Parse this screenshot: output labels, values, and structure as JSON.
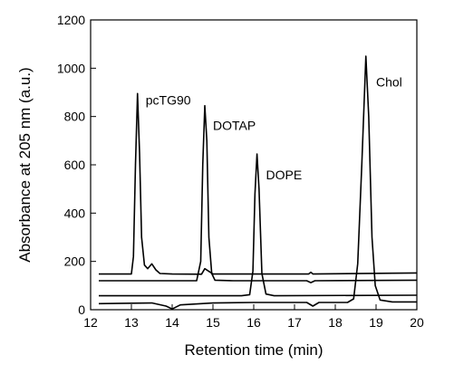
{
  "chart_data": {
    "type": "line",
    "xlabel": "Retention time (min)",
    "ylabel": "Absorbance at 205 nm (a.u.)",
    "xlim": [
      12,
      20
    ],
    "ylim": [
      0,
      1200
    ],
    "xticks": [
      12,
      13,
      14,
      15,
      16,
      17,
      18,
      19,
      20
    ],
    "yticks": [
      0,
      200,
      400,
      600,
      800,
      1000,
      1200
    ],
    "grid": false,
    "legend": "none",
    "line_color": "#000000",
    "series": [
      {
        "points": [
          [
            12.2,
            148
          ],
          [
            13.0,
            148
          ],
          [
            13.05,
            220
          ],
          [
            13.1,
            600
          ],
          [
            13.15,
            895
          ],
          [
            13.2,
            650
          ],
          [
            13.25,
            300
          ],
          [
            13.32,
            185
          ],
          [
            13.4,
            170
          ],
          [
            13.5,
            190
          ],
          [
            13.6,
            165
          ],
          [
            13.7,
            150
          ],
          [
            14.0,
            148
          ],
          [
            14.72,
            147
          ],
          [
            14.8,
            170
          ],
          [
            15.0,
            148
          ],
          [
            15.6,
            148
          ],
          [
            15.7,
            148
          ],
          [
            17.35,
            148
          ],
          [
            17.4,
            155
          ],
          [
            17.45,
            148
          ],
          [
            20,
            152
          ]
        ]
      },
      {
        "points": [
          [
            12.2,
            120
          ],
          [
            14.6,
            120
          ],
          [
            14.7,
            200
          ],
          [
            14.75,
            600
          ],
          [
            14.8,
            845
          ],
          [
            14.85,
            700
          ],
          [
            14.9,
            300
          ],
          [
            14.97,
            150
          ],
          [
            15.05,
            122
          ],
          [
            15.5,
            120
          ],
          [
            17.3,
            120
          ],
          [
            17.4,
            112
          ],
          [
            17.5,
            120
          ],
          [
            20,
            122
          ]
        ]
      },
      {
        "points": [
          [
            12.2,
            58
          ],
          [
            15.7,
            58
          ],
          [
            15.9,
            62
          ],
          [
            15.98,
            160
          ],
          [
            16.03,
            480
          ],
          [
            16.08,
            645
          ],
          [
            16.13,
            500
          ],
          [
            16.2,
            150
          ],
          [
            16.3,
            65
          ],
          [
            16.5,
            58
          ],
          [
            20,
            60
          ]
        ]
      },
      {
        "points": [
          [
            12.2,
            25
          ],
          [
            13.5,
            28
          ],
          [
            13.85,
            15
          ],
          [
            14.0,
            3
          ],
          [
            14.2,
            20
          ],
          [
            15.0,
            28
          ],
          [
            16.0,
            30
          ],
          [
            17.3,
            30
          ],
          [
            17.45,
            15
          ],
          [
            17.6,
            30
          ],
          [
            18.3,
            30
          ],
          [
            18.45,
            45
          ],
          [
            18.55,
            190
          ],
          [
            18.65,
            600
          ],
          [
            18.75,
            1050
          ],
          [
            18.82,
            800
          ],
          [
            18.9,
            300
          ],
          [
            18.98,
            100
          ],
          [
            19.1,
            40
          ],
          [
            19.4,
            32
          ],
          [
            20,
            32
          ]
        ]
      }
    ],
    "annotations": [
      {
        "text": "pcTG90",
        "x": 13.35,
        "y": 850
      },
      {
        "text": "DOTAP",
        "x": 15.0,
        "y": 745
      },
      {
        "text": "DOPE",
        "x": 16.3,
        "y": 540
      },
      {
        "text": "Chol",
        "x": 19.0,
        "y": 925
      }
    ]
  }
}
